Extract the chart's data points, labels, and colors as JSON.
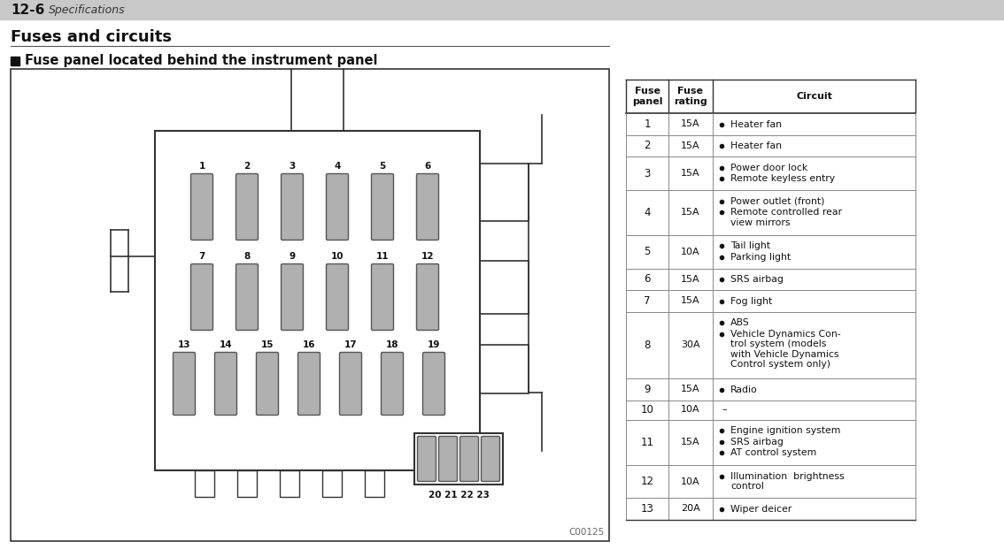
{
  "page_header": "12-6",
  "page_header_italic": "Specifications",
  "title": "Fuses and circuits",
  "subtitle": "Fuse panel located behind the instrument panel",
  "bg_color": "#ffffff",
  "header_bar_color": "#c8c8c8",
  "fuse_color": "#b0b0b0",
  "diagram_border_color": "#333333",
  "rows": [
    {
      "fuse": "1",
      "rating": "15A",
      "bullets": [
        "Heater fan"
      ]
    },
    {
      "fuse": "2",
      "rating": "15A",
      "bullets": [
        "Heater fan"
      ]
    },
    {
      "fuse": "3",
      "rating": "15A",
      "bullets": [
        "Power door lock",
        "Remote keyless entry"
      ]
    },
    {
      "fuse": "4",
      "rating": "15A",
      "bullets": [
        "Power outlet (front)",
        "Remote controlled rear\nview mirrors"
      ]
    },
    {
      "fuse": "5",
      "rating": "10A",
      "bullets": [
        "Tail light",
        "Parking light"
      ]
    },
    {
      "fuse": "6",
      "rating": "15A",
      "bullets": [
        "SRS airbag"
      ]
    },
    {
      "fuse": "7",
      "rating": "15A",
      "bullets": [
        "Fog light"
      ]
    },
    {
      "fuse": "8",
      "rating": "30A",
      "bullets": [
        "ABS",
        "Vehicle Dynamics Con-\ntrol system (models\nwith Vehicle Dynamics\nControl system only)"
      ]
    },
    {
      "fuse": "9",
      "rating": "15A",
      "bullets": [
        "Radio"
      ]
    },
    {
      "fuse": "10",
      "rating": "10A",
      "bullets": [
        "–"
      ]
    },
    {
      "fuse": "11",
      "rating": "15A",
      "bullets": [
        "Engine ignition system",
        "SRS airbag",
        "AT control system"
      ]
    },
    {
      "fuse": "12",
      "rating": "10A",
      "bullets": [
        "Illumination  brightness\ncontrol"
      ]
    },
    {
      "fuse": "13",
      "rating": "20A",
      "bullets": [
        "Wiper deicer"
      ]
    }
  ],
  "code": "C00125"
}
